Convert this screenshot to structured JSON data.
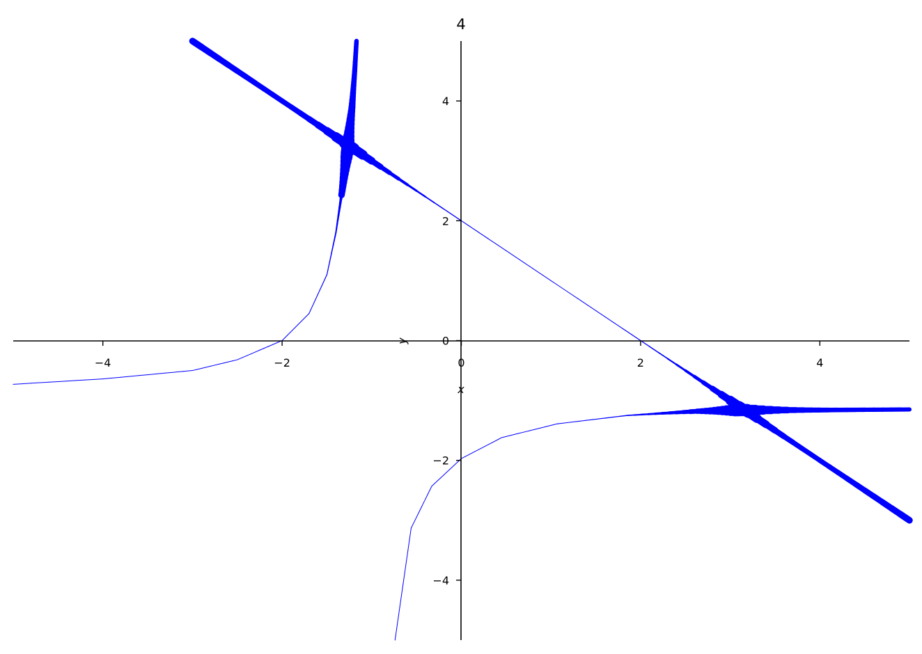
{
  "chart_data": {
    "type": "line",
    "title": "4",
    "xlabel": "x",
    "ylabel": "y",
    "xlim": [
      -5,
      5
    ],
    "ylim": [
      -5,
      5
    ],
    "grid": false,
    "axes_style": "centered spines through origin",
    "x_ticks": [
      "−4",
      "−2",
      "0",
      "2",
      "4"
    ],
    "x_tick_values": [
      -4,
      -2,
      0,
      2,
      4
    ],
    "y_ticks": [
      "−4",
      "−2",
      "0",
      "2",
      "4"
    ],
    "y_tick_values": [
      -4,
      -2,
      0,
      2,
      4
    ],
    "color": "#0000ff",
    "series": [
      {
        "x": [
          -3.0,
          -2,
          -1,
          0,
          1,
          2,
          3,
          4,
          5
        ],
        "y": [
          5.0,
          4,
          3,
          2,
          1,
          0,
          -1,
          -2,
          -3
        ]
      },
      {
        "x": [
          -5,
          -4,
          -3,
          -2.5,
          -2,
          -1.7,
          -1.5,
          -1.4,
          -1.33,
          -1.27,
          -1.22,
          -1.19,
          -1.17
        ],
        "y": [
          -0.73,
          -0.64,
          -0.5,
          -0.32,
          0,
          0.45,
          1.1,
          1.8,
          2.5,
          3.2,
          3.9,
          4.5,
          5.0
        ]
      },
      {
        "x": [
          -0.74,
          -0.56,
          -0.33,
          0,
          0.45,
          1.07,
          1.85,
          2.63,
          3.1,
          4,
          5
        ],
        "y": [
          -5,
          -3.13,
          -2.43,
          -1.97,
          -1.62,
          -1.39,
          -1.25,
          -1.18,
          -1.16,
          -1.16,
          -1.15
        ]
      }
    ]
  }
}
